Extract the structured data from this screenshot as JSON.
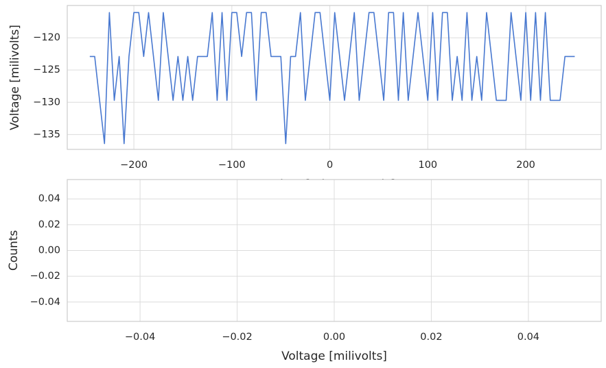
{
  "chart_data": [
    {
      "type": "line",
      "x_label": "Time [microseconds]",
      "y_label": "Voltage [milivolts]",
      "x": [
        -245,
        -240,
        -235,
        -230,
        -225,
        -220,
        -215,
        -210,
        -205,
        -200,
        -195,
        -190,
        -185,
        -180,
        -175,
        -170,
        -165,
        -160,
        -155,
        -150,
        -145,
        -140,
        -135,
        -130,
        -125,
        -120,
        -115,
        -110,
        -105,
        -100,
        -95,
        -90,
        -85,
        -80,
        -75,
        -70,
        -65,
        -60,
        -55,
        -50,
        -45,
        -40,
        -35,
        -30,
        -25,
        -20,
        -15,
        -10,
        -5,
        0,
        5,
        10,
        15,
        20,
        25,
        30,
        35,
        40,
        45,
        50,
        55,
        60,
        65,
        70,
        75,
        80,
        85,
        90,
        95,
        100,
        105,
        110,
        115,
        120,
        125,
        130,
        135,
        140,
        145,
        150,
        155,
        160,
        165,
        170,
        175,
        180,
        185,
        190,
        195,
        200,
        205,
        210,
        215,
        220,
        225,
        230,
        235,
        240,
        245,
        250
      ],
      "series": [
        {
          "color": "#4878d0",
          "values": [
            -122.9,
            -122.9,
            -129.7,
            -136.4,
            -116.1,
            -129.7,
            -122.9,
            -136.4,
            -122.9,
            -116.1,
            -116.1,
            -122.9,
            -116.1,
            -122.9,
            -129.7,
            -116.1,
            -122.9,
            -129.7,
            -122.9,
            -129.7,
            -122.9,
            -129.7,
            -122.9,
            -122.9,
            -122.9,
            -116.1,
            -129.7,
            -116.1,
            -129.7,
            -116.1,
            -116.1,
            -122.9,
            -116.1,
            -116.1,
            -129.7,
            -116.1,
            -116.1,
            -122.9,
            -122.9,
            -122.9,
            -136.4,
            -122.9,
            -122.9,
            -116.1,
            -129.7,
            -122.9,
            -116.1,
            -116.1,
            -122.9,
            -129.7,
            -116.1,
            -122.9,
            -129.7,
            -122.9,
            -116.1,
            -129.7,
            -122.9,
            -116.1,
            -116.1,
            -122.9,
            -129.7,
            -116.1,
            -116.1,
            -129.7,
            -116.1,
            -129.7,
            -122.9,
            -116.1,
            -122.9,
            -129.7,
            -116.1,
            -129.7,
            -116.1,
            -116.1,
            -129.7,
            -122.9,
            -129.7,
            -116.1,
            -129.7,
            -122.9,
            -129.7,
            -116.1,
            -122.9,
            -129.7,
            -129.7,
            -129.7,
            -116.1,
            -122.9,
            -129.7,
            -116.1,
            -129.7,
            -116.1,
            -129.7,
            -116.1,
            -129.7,
            -129.7,
            -129.7,
            -122.9,
            -122.9,
            -122.9
          ]
        }
      ],
      "xlim": [
        -268,
        277
      ],
      "ylim": [
        -137.3,
        -115.0
      ],
      "xticks": [
        {
          "value": -200,
          "label": "−200"
        },
        {
          "value": -100,
          "label": "−100"
        },
        0,
        100,
        200
      ],
      "yticks": [
        {
          "value": -135,
          "label": "−135"
        },
        {
          "value": -130,
          "label": "−130"
        },
        {
          "value": -125,
          "label": "−125"
        },
        {
          "value": -120,
          "label": "−120"
        }
      ],
      "grid": true
    },
    {
      "type": "histogram",
      "x_label": "Voltage [milivolts]",
      "y_label": "Counts",
      "xlim": [
        -0.055,
        0.055
      ],
      "ylim": [
        -0.055,
        0.055
      ],
      "xticks": [
        {
          "value": -0.04,
          "label": "−0.04"
        },
        {
          "value": -0.02,
          "label": "−0.02"
        },
        {
          "value": 0,
          "label": "0.00"
        },
        {
          "value": 0.02,
          "label": "0.02"
        },
        {
          "value": 0.04,
          "label": "0.04"
        }
      ],
      "yticks": [
        {
          "value": -0.04,
          "label": "−0.04"
        },
        {
          "value": -0.02,
          "label": "−0.02"
        },
        {
          "value": 0,
          "label": "0.00"
        },
        {
          "value": 0.02,
          "label": "0.02"
        },
        {
          "value": 0.04,
          "label": "0.04"
        }
      ],
      "grid": true
    }
  ]
}
